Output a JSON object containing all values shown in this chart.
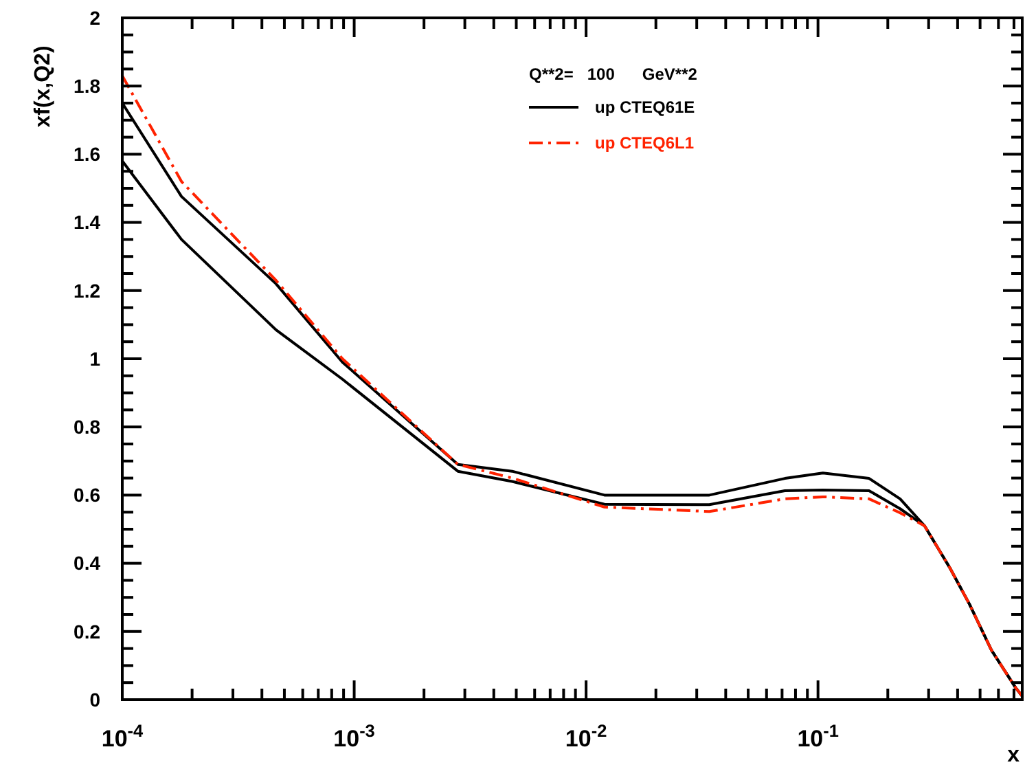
{
  "chart_data": {
    "type": "line",
    "xlabel": "x",
    "ylabel": "xf(x,Q2)",
    "legend_title": "Q**2=   100      GeV**2",
    "legend": "top right",
    "log": "x",
    "grid": false,
    "xlim": [
      0.0001,
      0.76
    ],
    "ylim": [
      0,
      2
    ],
    "xticks": [
      {
        "value": 0.0001,
        "label": "10$^{-4}$"
      },
      {
        "value": 0.0002,
        "label": null
      },
      {
        "value": 0.0003,
        "label": null
      },
      {
        "value": 0.0004,
        "label": null
      },
      {
        "value": 0.0005,
        "label": null
      },
      {
        "value": 0.0006,
        "label": null
      },
      {
        "value": 0.0007,
        "label": null
      },
      {
        "value": 0.0008,
        "label": null
      },
      {
        "value": 0.0009,
        "label": null
      },
      {
        "value": 0.001,
        "label": "10$^{-3}$"
      },
      {
        "value": 0.002,
        "label": null
      },
      {
        "value": 0.003,
        "label": null
      },
      {
        "value": 0.004,
        "label": null
      },
      {
        "value": 0.005,
        "label": null
      },
      {
        "value": 0.006,
        "label": null
      },
      {
        "value": 0.007,
        "label": null
      },
      {
        "value": 0.008,
        "label": null
      },
      {
        "value": 0.009,
        "label": null
      },
      {
        "value": 0.01,
        "label": "10$^{-2}$"
      },
      {
        "value": 0.02,
        "label": null
      },
      {
        "value": 0.03,
        "label": null
      },
      {
        "value": 0.04,
        "label": null
      },
      {
        "value": 0.05,
        "label": null
      },
      {
        "value": 0.06,
        "label": null
      },
      {
        "value": 0.07,
        "label": null
      },
      {
        "value": 0.08,
        "label": null
      },
      {
        "value": 0.09,
        "label": null
      },
      {
        "value": 0.1,
        "label": "10$^{-1}$"
      },
      {
        "value": 0.2,
        "label": null
      },
      {
        "value": 0.3,
        "label": null
      },
      {
        "value": 0.4,
        "label": null
      },
      {
        "value": 0.5,
        "label": null
      },
      {
        "value": 0.6,
        "label": null
      },
      {
        "value": 0.7,
        "label": null
      }
    ],
    "yticks": [
      0,
      {
        "value": 0.05,
        "label": null
      },
      {
        "value": 0.1,
        "label": null
      },
      {
        "value": 0.15,
        "label": null
      },
      0.2,
      {
        "value": 0.25,
        "label": null
      },
      {
        "value": 0.3,
        "label": null
      },
      {
        "value": 0.35,
        "label": null
      },
      0.4,
      {
        "value": 0.45,
        "label": null
      },
      {
        "value": 0.5,
        "label": null
      },
      {
        "value": 0.55,
        "label": null
      },
      0.6,
      {
        "value": 0.65,
        "label": null
      },
      {
        "value": 0.7,
        "label": null
      },
      {
        "value": 0.75,
        "label": null
      },
      0.8,
      {
        "value": 0.85,
        "label": null
      },
      {
        "value": 0.9,
        "label": null
      },
      {
        "value": 0.95,
        "label": null
      },
      1,
      {
        "value": 1.05,
        "label": null
      },
      {
        "value": 1.1,
        "label": null
      },
      {
        "value": 1.15,
        "label": null
      },
      1.2,
      {
        "value": 1.25,
        "label": null
      },
      {
        "value": 1.3,
        "label": null
      },
      {
        "value": 1.35,
        "label": null
      },
      1.4,
      {
        "value": 1.45,
        "label": null
      },
      {
        "value": 1.5,
        "label": null
      },
      {
        "value": 1.55,
        "label": null
      },
      1.6,
      {
        "value": 1.65,
        "label": null
      },
      {
        "value": 1.7,
        "label": null
      },
      {
        "value": 1.75,
        "label": null
      },
      1.8,
      {
        "value": 1.85,
        "label": null
      },
      {
        "value": 1.9,
        "label": null
      },
      {
        "value": 1.95,
        "label": null
      },
      2
    ],
    "x": [
      0.0001,
      0.00018,
      0.00046,
      0.00089,
      0.0028,
      0.0048,
      0.012,
      0.034,
      0.072,
      0.105,
      0.166,
      0.226,
      0.288,
      0.37,
      0.45,
      0.56,
      0.71,
      0.76
    ],
    "series": [
      {
        "name": "up CTEQ61E",
        "color": "#000000",
        "line_style": "solid",
        "values": [
          1.75,
          1.476,
          1.22,
          0.99,
          0.69,
          0.67,
          0.6,
          0.6,
          0.649,
          0.665,
          0.649,
          0.589,
          0.51,
          0.387,
          0.28,
          0.145,
          0.036,
          0.01
        ]
      },
      {
        "color": "#000000",
        "line_style": "solid",
        "values": [
          1.58,
          1.35,
          1.085,
          0.94,
          0.67,
          0.64,
          0.573,
          0.572,
          0.613,
          0.615,
          0.613,
          0.56,
          0.51,
          0.387,
          0.28,
          0.145,
          0.036,
          0.01
        ]
      },
      {
        "name": "up CTEQ6L1",
        "color": "#ff2200",
        "line_style": "dashed",
        "values": [
          1.83,
          1.52,
          1.23,
          1.0,
          0.69,
          0.65,
          0.565,
          0.552,
          0.589,
          0.595,
          0.589,
          0.548,
          0.51,
          0.387,
          0.28,
          0.145,
          0.036,
          0.01
        ]
      }
    ]
  }
}
